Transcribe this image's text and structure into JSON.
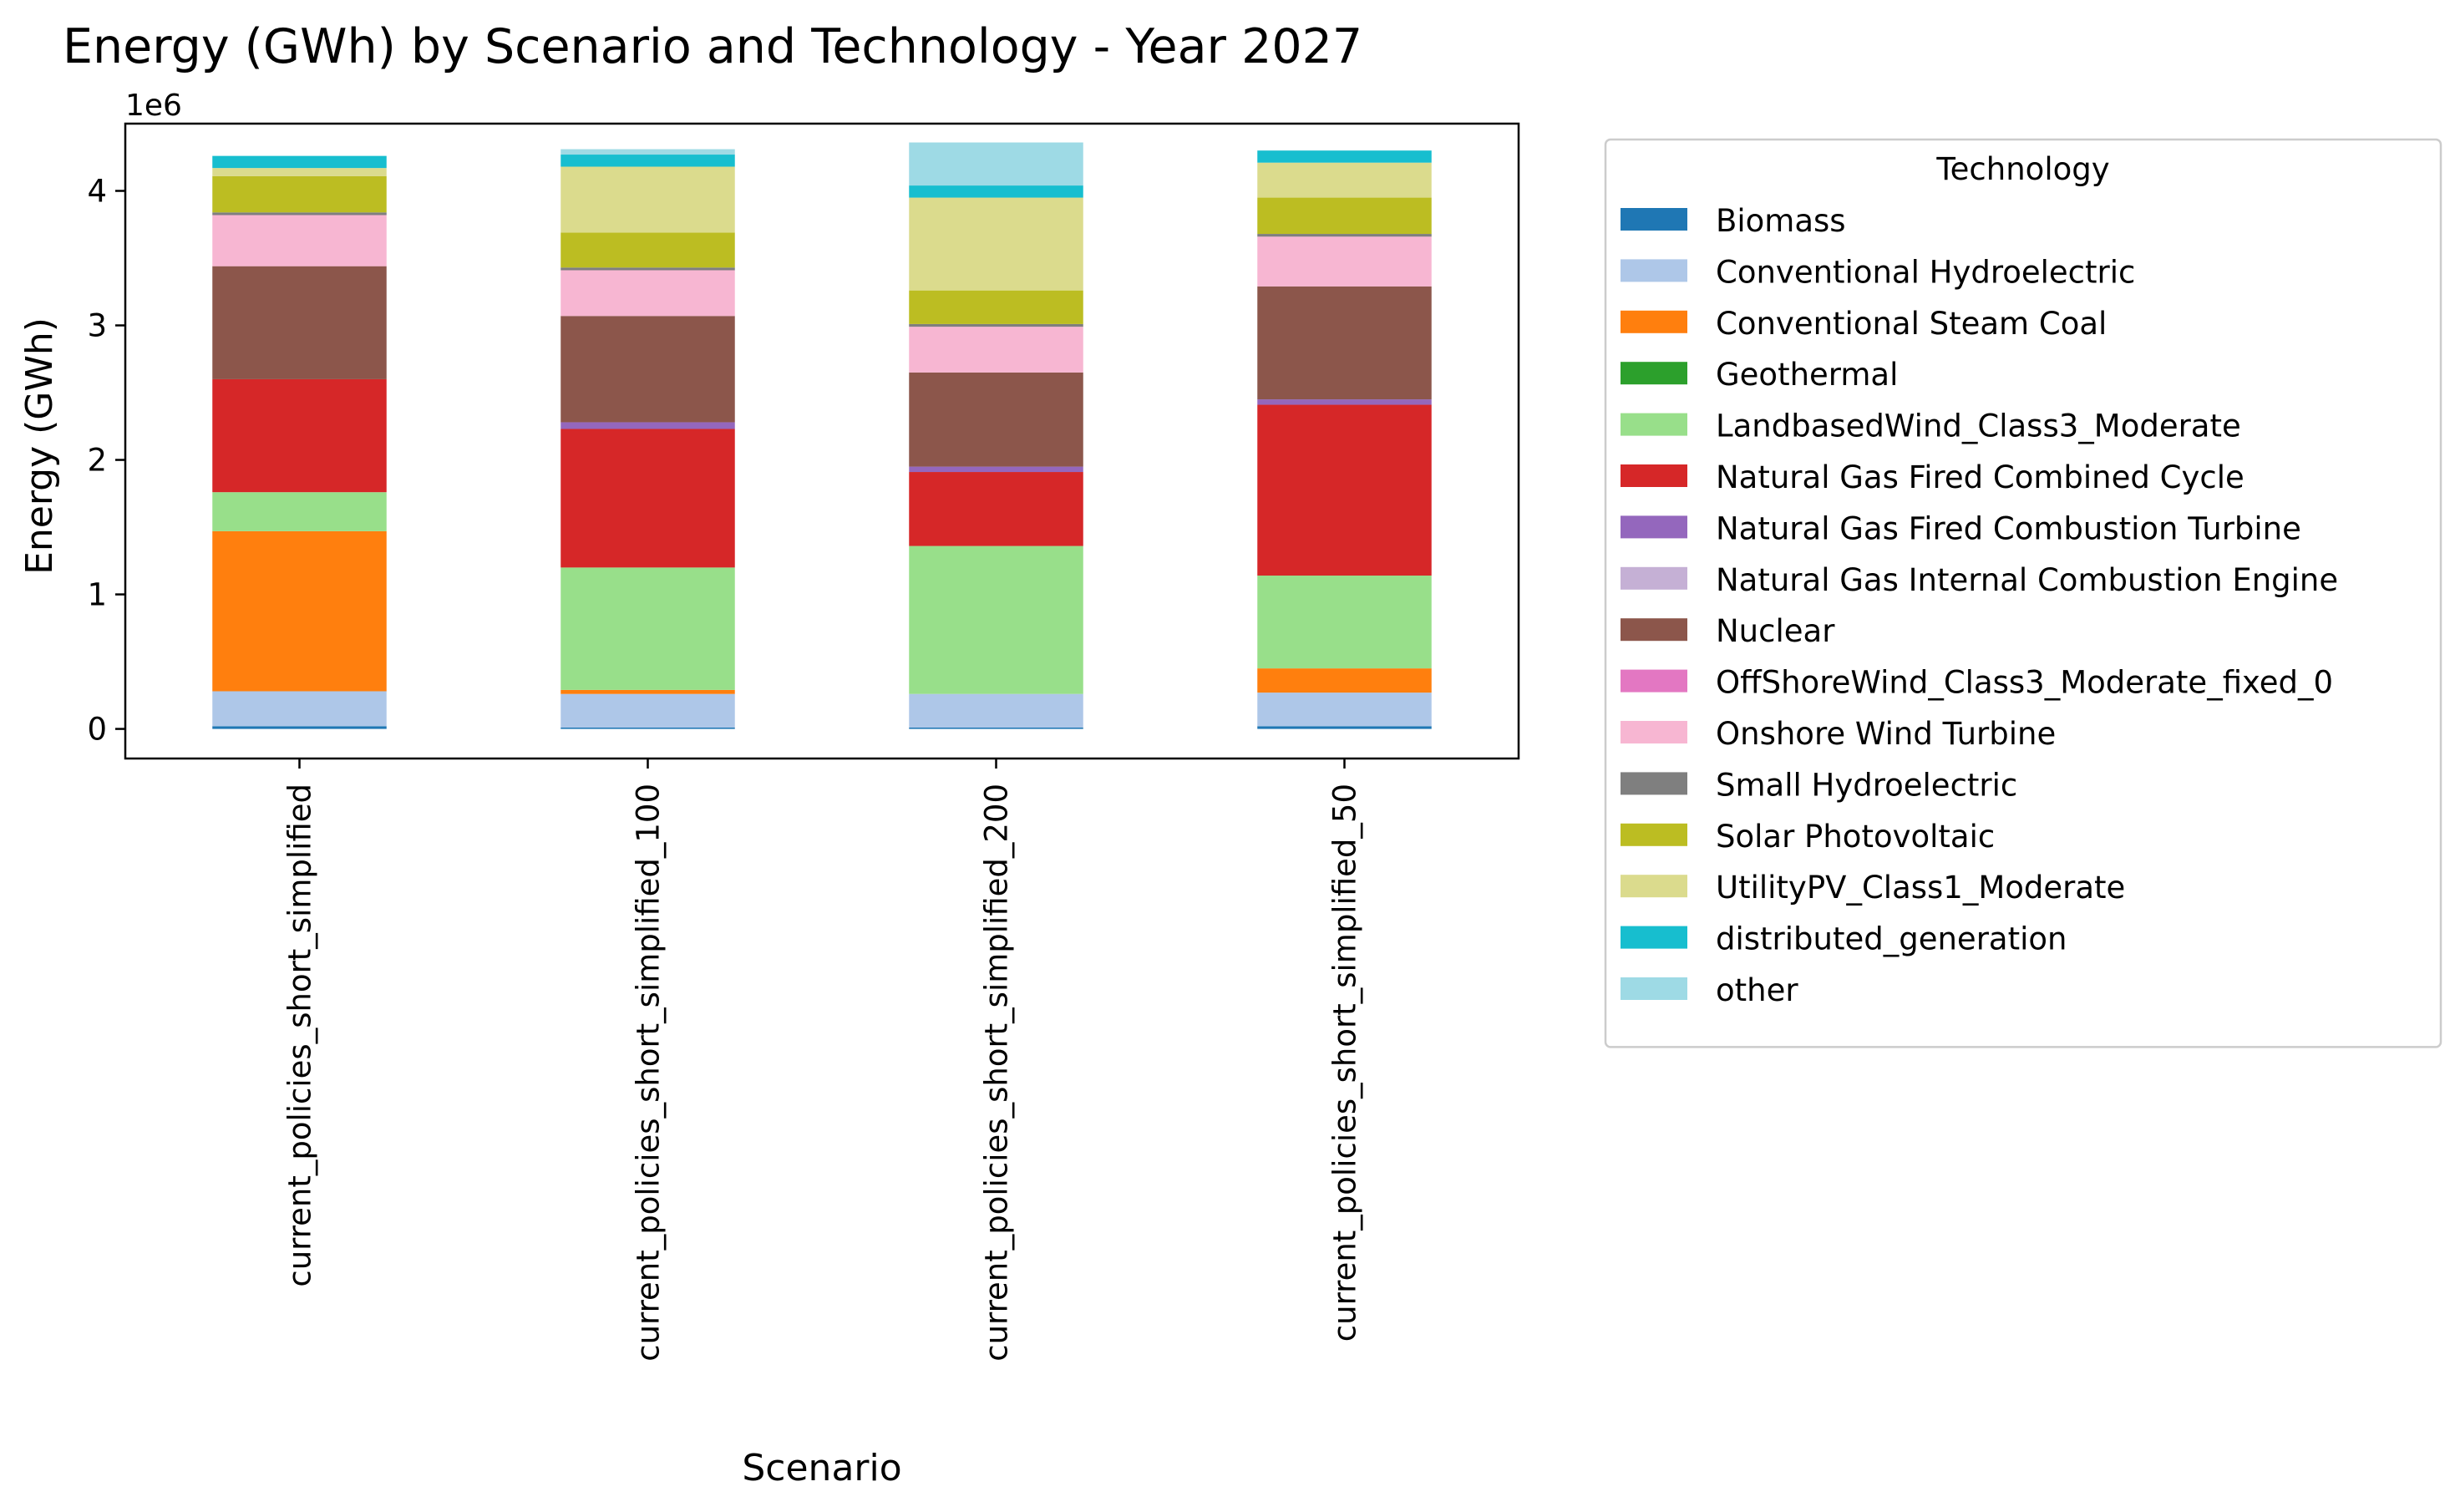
{
  "chart_data": {
    "type": "bar",
    "stacked": true,
    "title": "Energy (GWh) by Scenario and Technology - Year 2027",
    "xlabel": "Scenario",
    "ylabel": "Energy (GWh)",
    "y_offset_label": "1e6",
    "ylim": [
      -0.22,
      4.5
    ],
    "yticks": [
      0,
      1,
      2,
      3,
      4
    ],
    "categories": [
      "current_policies_short_simplified",
      "current_policies_short_simplified_100",
      "current_policies_short_simplified_200",
      "current_policies_short_simplified_50"
    ],
    "legend": {
      "title": "Technology",
      "placement": "outside-right"
    },
    "series": [
      {
        "name": "Biomass",
        "color": "#1f77b4",
        "values": [
          0.02,
          0.01,
          0.01,
          0.02
        ]
      },
      {
        "name": "Conventional Hydroelectric",
        "color": "#aec7e8",
        "values": [
          0.26,
          0.25,
          0.25,
          0.25
        ]
      },
      {
        "name": "Conventional Steam Coal",
        "color": "#ff7f0e",
        "values": [
          1.19,
          0.03,
          0.0,
          0.18
        ]
      },
      {
        "name": "Geothermal",
        "color": "#2ca02c",
        "values": [
          0.0,
          0.0,
          0.0,
          0.0
        ]
      },
      {
        "name": "LandbasedWind_Class3_Moderate",
        "color": "#98df8a",
        "values": [
          0.29,
          0.91,
          1.1,
          0.69
        ]
      },
      {
        "name": "Natural Gas Fired Combined Cycle",
        "color": "#d62728",
        "values": [
          0.84,
          1.03,
          0.55,
          1.27
        ]
      },
      {
        "name": "Natural Gas Fired Combustion Turbine",
        "color": "#9467bd",
        "values": [
          0.0,
          0.05,
          0.04,
          0.04
        ]
      },
      {
        "name": "Natural Gas Internal Combustion Engine",
        "color": "#c5b0d5",
        "values": [
          0.0,
          0.0,
          0.0,
          0.0
        ]
      },
      {
        "name": "Nuclear",
        "color": "#8c564b",
        "values": [
          0.84,
          0.79,
          0.7,
          0.84
        ]
      },
      {
        "name": "OffShoreWind_Class3_Moderate_fixed_0",
        "color": "#e377c2",
        "values": [
          0.0,
          0.0,
          0.0,
          0.0
        ]
      },
      {
        "name": "Onshore Wind Turbine",
        "color": "#f7b6d2",
        "values": [
          0.38,
          0.34,
          0.34,
          0.37
        ]
      },
      {
        "name": "Small Hydroelectric",
        "color": "#7f7f7f",
        "values": [
          0.02,
          0.02,
          0.02,
          0.02
        ]
      },
      {
        "name": "Solar Photovoltaic",
        "color": "#bcbd22",
        "values": [
          0.27,
          0.26,
          0.25,
          0.27
        ]
      },
      {
        "name": "UtilityPV_Class1_Moderate",
        "color": "#dbdb8d",
        "values": [
          0.06,
          0.49,
          0.69,
          0.26
        ]
      },
      {
        "name": "distributed_generation",
        "color": "#17becf",
        "values": [
          0.09,
          0.09,
          0.09,
          0.09
        ]
      },
      {
        "name": "other",
        "color": "#9edae5",
        "values": [
          0.0,
          0.04,
          0.32,
          0.0
        ]
      }
    ]
  }
}
